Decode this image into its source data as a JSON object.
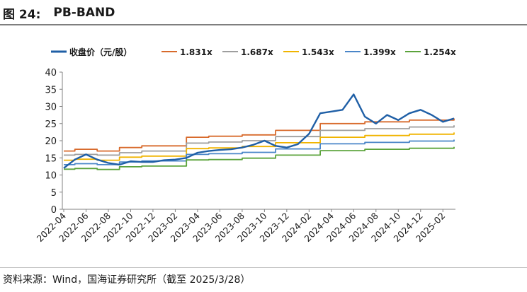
{
  "figure": {
    "label": "图 24:",
    "title": "PB-BAND",
    "source": "资料来源：Wind，国海证券研究所（截至 2025/3/28）"
  },
  "chart_data": {
    "type": "line",
    "title": "PB-BAND",
    "x": [
      "2022-04",
      "2022-05",
      "2022-06",
      "2022-07",
      "2022-08",
      "2022-09",
      "2022-10",
      "2022-11",
      "2022-12",
      "2023-01",
      "2023-02",
      "2023-03",
      "2023-04",
      "2023-05",
      "2023-06",
      "2023-07",
      "2023-08",
      "2023-09",
      "2023-10",
      "2023-11",
      "2023-12",
      "2024-01",
      "2024-02",
      "2024-03",
      "2024-04",
      "2024-05",
      "2024-06",
      "2024-07",
      "2024-08",
      "2024-09",
      "2024-10",
      "2024-11",
      "2024-12",
      "2025-01",
      "2025-02",
      "2025-03"
    ],
    "x_tick_labels": [
      "2022-04",
      "2022-06",
      "2022-08",
      "2022-10",
      "2022-12",
      "2023-02",
      "2023-04",
      "2023-06",
      "2023-08",
      "2023-10",
      "2023-12",
      "2024-02",
      "2024-04",
      "2024-06",
      "2024-08",
      "2024-10",
      "2024-12",
      "2025-02"
    ],
    "ylim": [
      0,
      40
    ],
    "yticks": [
      0,
      5,
      10,
      15,
      20,
      25,
      30,
      35,
      40
    ],
    "grid": false,
    "legend_position": "top",
    "series": [
      {
        "name": "收盘价（元/股）",
        "color": "#1f5fa6",
        "values": [
          12.0,
          14.5,
          16.0,
          14.5,
          13.5,
          13.0,
          14.0,
          13.8,
          13.8,
          14.3,
          14.5,
          15.0,
          16.5,
          17.0,
          17.3,
          17.5,
          18.0,
          18.8,
          20.0,
          18.5,
          18.0,
          19.0,
          22.0,
          28.0,
          28.5,
          29.0,
          33.5,
          27.0,
          25.0,
          27.5,
          26.0,
          28.0,
          29.0,
          27.5,
          25.5,
          26.5
        ]
      },
      {
        "name": "1.831x",
        "color": "#d86a2c",
        "values": [
          17.0,
          17.5,
          17.5,
          17.0,
          17.0,
          18.0,
          18.0,
          18.5,
          18.5,
          18.5,
          18.5,
          21.0,
          21.0,
          21.3,
          21.3,
          21.3,
          21.7,
          21.7,
          21.7,
          23.0,
          23.0,
          23.0,
          23.0,
          25.0,
          25.0,
          25.0,
          25.0,
          25.5,
          25.5,
          25.5,
          25.5,
          26.0,
          26.0,
          26.0,
          26.0,
          26.5
        ]
      },
      {
        "name": "1.687x",
        "color": "#9e9e9e",
        "values": [
          15.8,
          16.0,
          16.0,
          15.8,
          15.8,
          16.5,
          16.5,
          17.0,
          17.0,
          17.0,
          17.0,
          19.3,
          19.3,
          19.6,
          19.6,
          19.6,
          20.0,
          20.0,
          20.0,
          21.2,
          21.2,
          21.2,
          21.2,
          23.0,
          23.0,
          23.0,
          23.0,
          23.5,
          23.5,
          23.5,
          23.5,
          24.0,
          24.0,
          24.0,
          24.0,
          24.5
        ]
      },
      {
        "name": "1.543x",
        "color": "#f0b400",
        "values": [
          14.3,
          14.6,
          14.6,
          14.3,
          14.3,
          15.2,
          15.2,
          15.5,
          15.5,
          15.5,
          15.5,
          17.7,
          17.7,
          17.9,
          17.9,
          17.9,
          18.3,
          18.3,
          18.3,
          19.4,
          19.4,
          19.4,
          19.4,
          21.0,
          21.0,
          21.0,
          21.0,
          21.5,
          21.5,
          21.5,
          21.5,
          21.9,
          21.9,
          21.9,
          21.9,
          22.4
        ]
      },
      {
        "name": "1.399x",
        "color": "#4a86c8",
        "values": [
          13.0,
          13.3,
          13.3,
          13.0,
          13.0,
          13.8,
          13.8,
          14.1,
          14.1,
          14.1,
          14.1,
          16.0,
          16.0,
          16.2,
          16.2,
          16.2,
          16.6,
          16.6,
          16.6,
          17.6,
          17.6,
          17.6,
          17.6,
          19.1,
          19.1,
          19.1,
          19.1,
          19.5,
          19.5,
          19.5,
          19.5,
          19.9,
          19.9,
          19.9,
          19.9,
          20.3
        ]
      },
      {
        "name": "1.254x",
        "color": "#5ba33b",
        "values": [
          11.7,
          11.9,
          11.9,
          11.6,
          11.6,
          12.4,
          12.4,
          12.6,
          12.6,
          12.6,
          12.6,
          14.4,
          14.4,
          14.5,
          14.5,
          14.5,
          14.9,
          14.9,
          14.9,
          15.8,
          15.8,
          15.8,
          15.8,
          17.1,
          17.1,
          17.1,
          17.1,
          17.5,
          17.5,
          17.5,
          17.5,
          17.8,
          17.8,
          17.8,
          17.8,
          18.2
        ]
      }
    ]
  }
}
